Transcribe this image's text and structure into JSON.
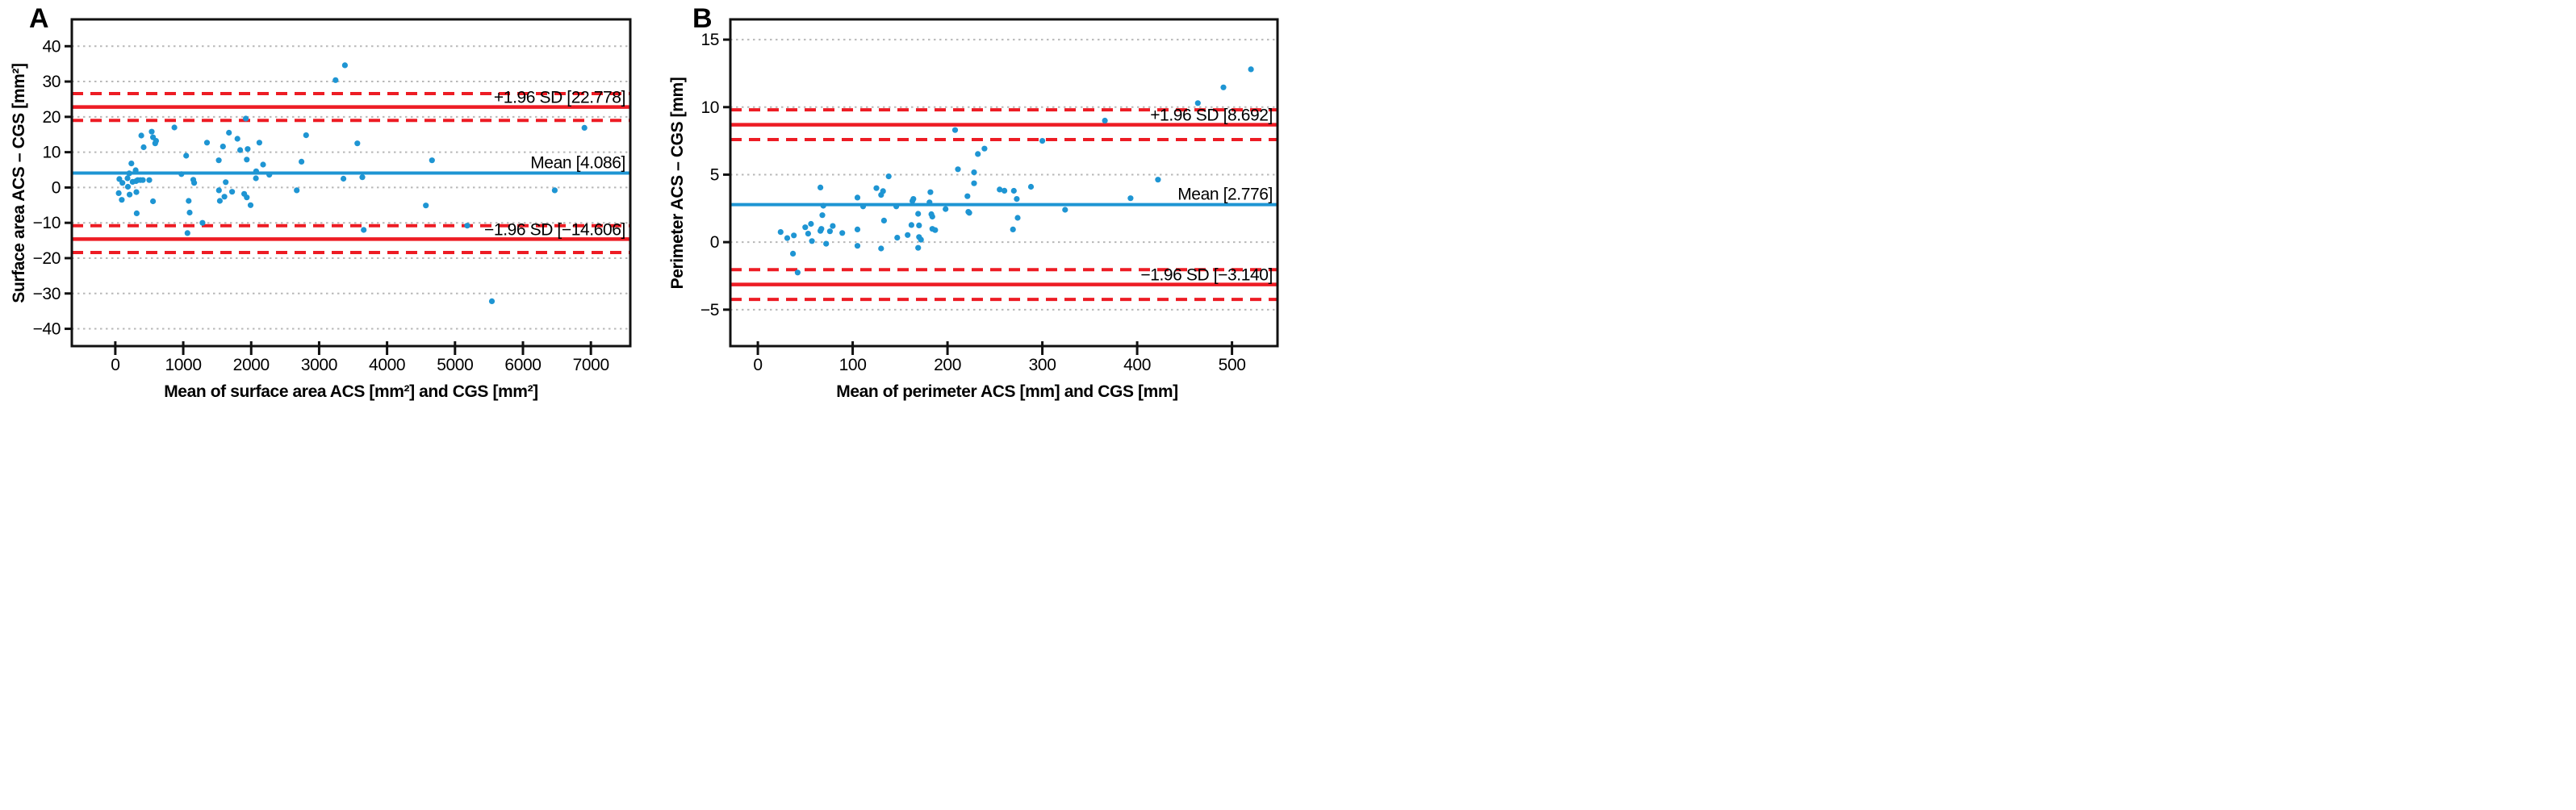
{
  "figure": {
    "colors": {
      "blue": "#1e95d3",
      "red": "#ed1c24",
      "grid": "#b8b8b8",
      "axis": "#111111",
      "text": "#000000",
      "background": "#ffffff"
    }
  },
  "chart_data": [
    {
      "type": "scatter",
      "panel_label": "A",
      "xlabel": "Mean of surface area ACS [mm²] and CGS [mm²]",
      "ylabel": "Surface area ACS – CGS [mm²]",
      "xlim": [
        -640,
        7580
      ],
      "ylim": [
        -44.9,
        47.6
      ],
      "xticks": [
        0,
        1000,
        2000,
        3000,
        4000,
        5000,
        6000,
        7000
      ],
      "yticks": [
        40,
        30,
        20,
        10,
        0,
        -10,
        -20,
        -30,
        -40
      ],
      "grid": "horizontal-dotted",
      "legend": "none",
      "mean_line": {
        "value": 4.086,
        "label": "Mean [4.086]"
      },
      "upper_loa": {
        "value": 22.778,
        "label": "+1.96 SD [22.778]",
        "ci": [
          19.0,
          26.6
        ]
      },
      "lower_loa": {
        "value": -14.606,
        "label": "−1.96 SD [−14.606]",
        "ci": [
          -18.4,
          -10.8
        ]
      },
      "points": [
        [
          50,
          -1.6
        ],
        [
          60,
          2.4
        ],
        [
          95,
          -3.5
        ],
        [
          105,
          1.3
        ],
        [
          180,
          2.6
        ],
        [
          185,
          0.2
        ],
        [
          205,
          4.0
        ],
        [
          210,
          -2.0
        ],
        [
          237,
          6.8
        ],
        [
          255,
          1.6
        ],
        [
          300,
          4.9
        ],
        [
          305,
          1.8
        ],
        [
          310,
          -1.3
        ],
        [
          315,
          -7.3
        ],
        [
          330,
          2.1
        ],
        [
          370,
          2.1
        ],
        [
          405,
          2.1
        ],
        [
          383,
          14.7
        ],
        [
          417,
          11.4
        ],
        [
          500,
          2.1
        ],
        [
          536,
          15.8
        ],
        [
          555,
          14.2
        ],
        [
          555,
          -3.9
        ],
        [
          587,
          12.5
        ],
        [
          600,
          13.2
        ],
        [
          870,
          17.0
        ],
        [
          973,
          3.8
        ],
        [
          1043,
          9.0
        ],
        [
          1062,
          -12.9
        ],
        [
          1080,
          -3.8
        ],
        [
          1094,
          -7.1
        ],
        [
          1148,
          2.2
        ],
        [
          1161,
          1.3
        ],
        [
          1283,
          -10.0
        ],
        [
          1350,
          12.7
        ],
        [
          1523,
          7.7
        ],
        [
          1525,
          -0.8
        ],
        [
          1539,
          -3.8
        ],
        [
          1585,
          11.6
        ],
        [
          1606,
          -2.6
        ],
        [
          1625,
          1.5
        ],
        [
          1673,
          15.5
        ],
        [
          1719,
          -1.2
        ],
        [
          1798,
          13.8
        ],
        [
          1838,
          10.6
        ],
        [
          1897,
          -1.8
        ],
        [
          1921,
          19.5
        ],
        [
          1935,
          7.9
        ],
        [
          1935,
          -2.8
        ],
        [
          1948,
          10.9
        ],
        [
          1991,
          -5.0
        ],
        [
          2070,
          2.6
        ],
        [
          2073,
          4.6
        ],
        [
          2121,
          12.7
        ],
        [
          2175,
          6.5
        ],
        [
          2267,
          3.6
        ],
        [
          2671,
          -0.8
        ],
        [
          2741,
          7.3
        ],
        [
          2808,
          14.8
        ],
        [
          3242,
          30.4
        ],
        [
          3358,
          2.5
        ],
        [
          3380,
          34.6
        ],
        [
          3563,
          12.5
        ],
        [
          3636,
          2.9
        ],
        [
          3657,
          -12.0
        ],
        [
          4571,
          -5.1
        ],
        [
          4662,
          7.7
        ],
        [
          5180,
          -10.8
        ],
        [
          5543,
          -32.2
        ],
        [
          6468,
          -0.8
        ],
        [
          6905,
          16.9
        ]
      ]
    },
    {
      "type": "scatter",
      "panel_label": "B",
      "xlabel": "Mean of perimeter ACS [mm] and CGS [mm]",
      "ylabel": "Perimeter ACS – CGS [mm]",
      "xlim": [
        -29,
        548
      ],
      "ylim": [
        -7.7,
        16.5
      ],
      "xticks": [
        0,
        100,
        200,
        300,
        400,
        500
      ],
      "yticks": [
        15,
        10,
        5,
        0,
        -5
      ],
      "grid": "horizontal-dotted",
      "legend": "none",
      "mean_line": {
        "value": 2.776,
        "label": "Mean [2.776]"
      },
      "upper_loa": {
        "value": 8.692,
        "label": "+1.96 SD [8.692]",
        "ci": [
          7.6,
          9.8
        ]
      },
      "lower_loa": {
        "value": -3.14,
        "label": "−1.96 SD [−3.140]",
        "ci": [
          -4.24,
          -2.04
        ]
      },
      "points": [
        [
          24,
          0.75
        ],
        [
          31,
          0.3
        ],
        [
          37,
          -0.85
        ],
        [
          38,
          0.5
        ],
        [
          42,
          -2.25
        ],
        [
          50,
          1.1
        ],
        [
          53,
          0.63
        ],
        [
          56,
          1.35
        ],
        [
          57,
          0.08
        ],
        [
          66,
          4.05
        ],
        [
          66,
          0.83
        ],
        [
          67,
          0.98
        ],
        [
          68,
          2.0
        ],
        [
          69,
          2.7
        ],
        [
          72,
          -0.12
        ],
        [
          76,
          0.8
        ],
        [
          79,
          1.2
        ],
        [
          89,
          0.68
        ],
        [
          105,
          3.3
        ],
        [
          105,
          0.94
        ],
        [
          105,
          -0.27
        ],
        [
          111,
          2.65
        ],
        [
          125,
          4.0
        ],
        [
          130,
          3.5
        ],
        [
          130,
          -0.47
        ],
        [
          132,
          3.78
        ],
        [
          133,
          1.6
        ],
        [
          138,
          4.87
        ],
        [
          146,
          2.65
        ],
        [
          147,
          0.33
        ],
        [
          158,
          0.53
        ],
        [
          162,
          1.27
        ],
        [
          163,
          3.05
        ],
        [
          164,
          3.2
        ],
        [
          169,
          2.1
        ],
        [
          169,
          -0.42
        ],
        [
          170,
          1.24
        ],
        [
          170,
          0.38
        ],
        [
          172,
          0.18
        ],
        [
          181,
          2.95
        ],
        [
          182,
          3.7
        ],
        [
          183,
          2.07
        ],
        [
          184,
          1.89
        ],
        [
          184,
          0.98
        ],
        [
          187,
          0.89
        ],
        [
          198,
          2.45
        ],
        [
          208,
          8.3
        ],
        [
          211,
          5.4
        ],
        [
          221,
          3.4
        ],
        [
          222,
          2.24
        ],
        [
          223,
          2.17
        ],
        [
          228,
          5.17
        ],
        [
          228,
          4.36
        ],
        [
          232,
          6.53
        ],
        [
          239,
          6.93
        ],
        [
          255,
          3.9
        ],
        [
          260,
          3.81
        ],
        [
          269,
          0.94
        ],
        [
          270,
          3.8
        ],
        [
          273,
          3.2
        ],
        [
          274,
          1.8
        ],
        [
          288,
          4.1
        ],
        [
          300,
          7.5
        ],
        [
          324,
          2.4
        ],
        [
          366,
          9.0
        ],
        [
          393,
          3.25
        ],
        [
          422,
          4.63
        ],
        [
          464,
          10.3
        ],
        [
          491,
          11.46
        ],
        [
          520,
          12.8
        ]
      ]
    }
  ]
}
